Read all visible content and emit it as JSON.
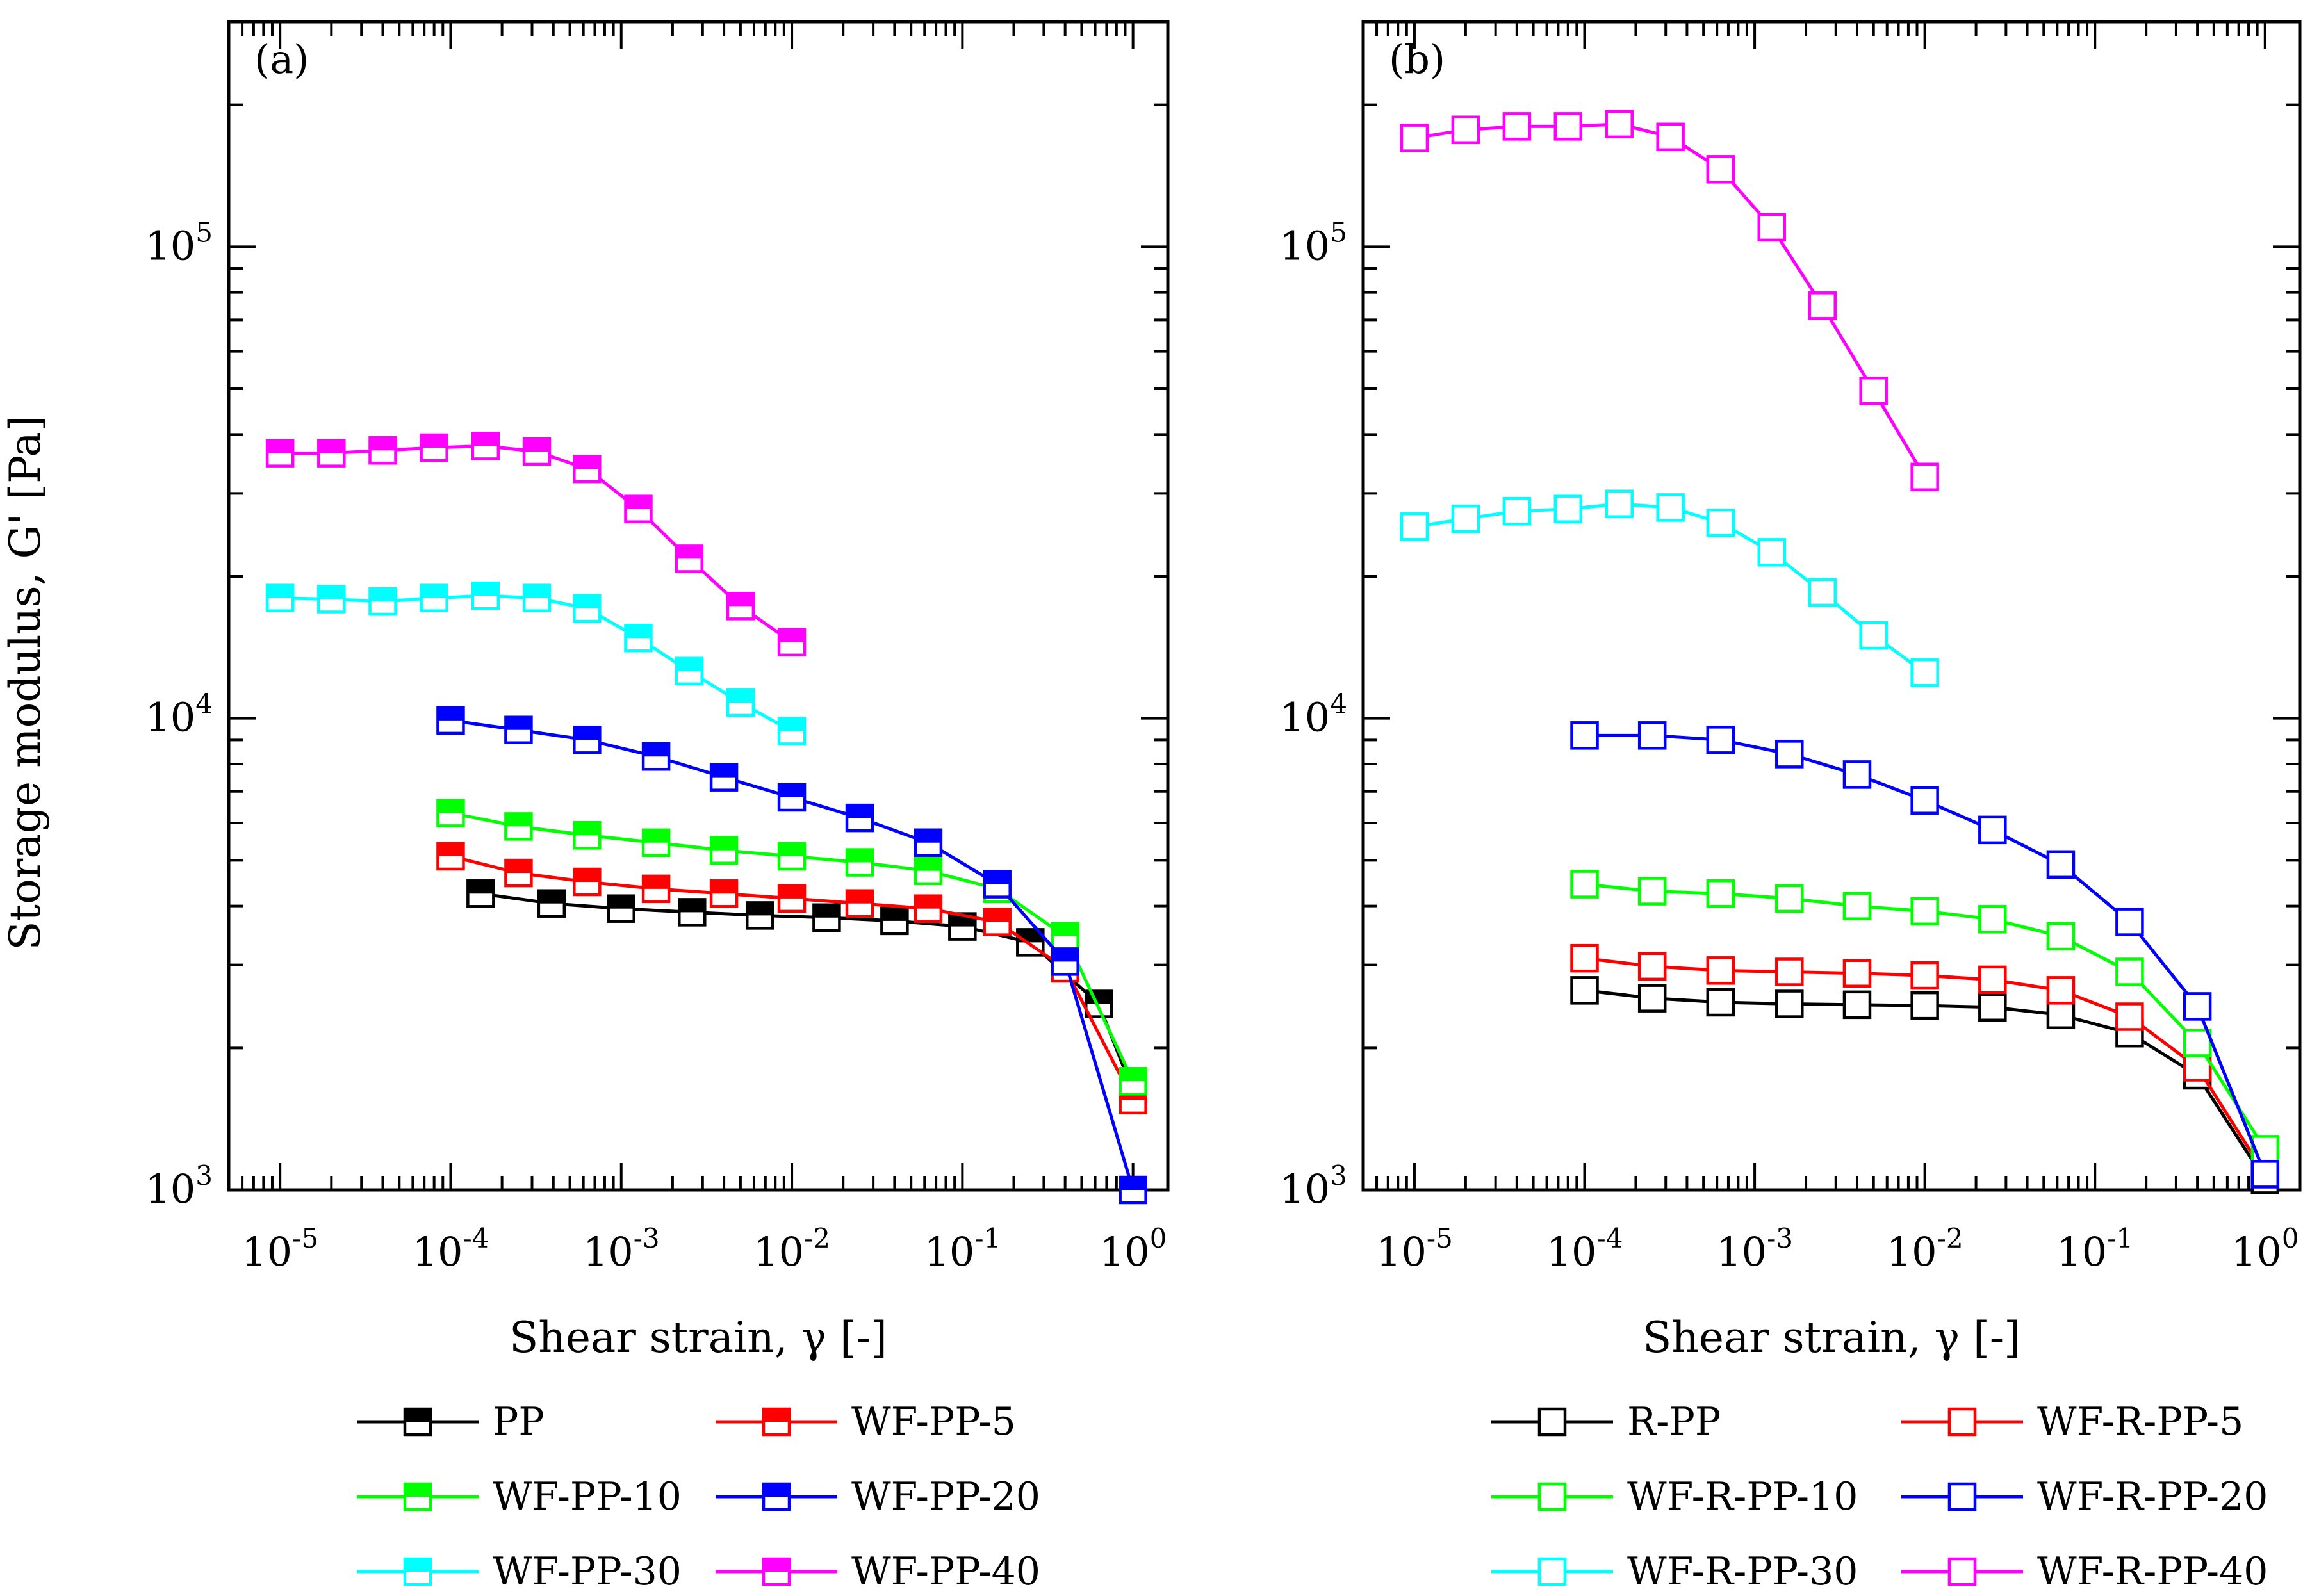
{
  "chart_data": [
    {
      "type": "line",
      "panel_label": "(a)",
      "xlabel": "Shear strain, γ [-]",
      "ylabel": "Storage modulus, G' [Pa]",
      "x_scale": "log",
      "y_scale": "log",
      "xlim": [
        5e-06,
        1.6
      ],
      "ylim": [
        1000,
        300000
      ],
      "x_ticks": [
        {
          "value": 1e-05,
          "base": "10",
          "exp": "-5"
        },
        {
          "value": 0.0001,
          "base": "10",
          "exp": "-4"
        },
        {
          "value": 0.001,
          "base": "10",
          "exp": "-3"
        },
        {
          "value": 0.01,
          "base": "10",
          "exp": "-2"
        },
        {
          "value": 0.1,
          "base": "10",
          "exp": "-1"
        },
        {
          "value": 1,
          "base": "10",
          "exp": "0"
        }
      ],
      "y_ticks": [
        {
          "value": 1000,
          "base": "10",
          "exp": "3"
        },
        {
          "value": 10000,
          "base": "10",
          "exp": "4"
        },
        {
          "value": 100000,
          "base": "10",
          "exp": "5"
        }
      ],
      "grid": false,
      "legend_position": "bottom",
      "marker": "half-filled-square",
      "series": [
        {
          "name": "PP",
          "color": "#000000",
          "x": [
            0.00015,
            0.00039,
            0.001,
            0.0026,
            0.0065,
            0.016,
            0.04,
            0.1,
            0.25,
            0.63,
            1.0
          ],
          "y": [
            4250,
            4050,
            3950,
            3880,
            3820,
            3780,
            3720,
            3620,
            3350,
            2480,
            1620
          ]
        },
        {
          "name": "WF-PP-5",
          "color": "#ff0000",
          "x": [
            0.0001,
            0.00025,
            0.00063,
            0.0016,
            0.004,
            0.01,
            0.025,
            0.063,
            0.16,
            0.4,
            1.0
          ],
          "y": [
            5100,
            4700,
            4500,
            4350,
            4250,
            4150,
            4050,
            3950,
            3700,
            2950,
            1550
          ]
        },
        {
          "name": "WF-PP-10",
          "color": "#00ff00",
          "x": [
            0.0001,
            0.00025,
            0.00063,
            0.0016,
            0.004,
            0.01,
            0.025,
            0.063,
            0.16,
            0.4,
            1.0
          ],
          "y": [
            6300,
            5900,
            5650,
            5450,
            5250,
            5100,
            4950,
            4750,
            4350,
            3450,
            1700
          ]
        },
        {
          "name": "WF-PP-20",
          "color": "#0000ff",
          "x": [
            0.0001,
            0.00025,
            0.00063,
            0.0016,
            0.004,
            0.01,
            0.025,
            0.063,
            0.16,
            0.4,
            1.0
          ],
          "y": [
            9900,
            9450,
            9000,
            8300,
            7500,
            6800,
            6150,
            5450,
            4450,
            3050,
            1000
          ]
        },
        {
          "name": "WF-PP-30",
          "color": "#00ffff",
          "x": [
            1e-05,
            2e-05,
            4e-05,
            8e-05,
            0.00016,
            0.00032,
            0.00063,
            0.00126,
            0.0025,
            0.005,
            0.01
          ],
          "y": [
            18000,
            17900,
            17700,
            18000,
            18200,
            18000,
            17100,
            14800,
            12600,
            10800,
            9400
          ]
        },
        {
          "name": "WF-PP-40",
          "color": "#ff00ff",
          "x": [
            1e-05,
            2e-05,
            4e-05,
            8e-05,
            0.00016,
            0.00032,
            0.00063,
            0.00126,
            0.0025,
            0.005,
            0.01
          ],
          "y": [
            36500,
            36500,
            37000,
            37500,
            37800,
            36800,
            33800,
            27800,
            21800,
            17300,
            14500
          ]
        }
      ]
    },
    {
      "type": "line",
      "panel_label": "(b)",
      "xlabel": "Shear strain, γ [-]",
      "ylabel": "",
      "x_scale": "log",
      "y_scale": "log",
      "xlim": [
        5e-06,
        1.6
      ],
      "ylim": [
        1000,
        300000
      ],
      "x_ticks": [
        {
          "value": 1e-05,
          "base": "10",
          "exp": "-5"
        },
        {
          "value": 0.0001,
          "base": "10",
          "exp": "-4"
        },
        {
          "value": 0.001,
          "base": "10",
          "exp": "-3"
        },
        {
          "value": 0.01,
          "base": "10",
          "exp": "-2"
        },
        {
          "value": 0.1,
          "base": "10",
          "exp": "-1"
        },
        {
          "value": 1,
          "base": "10",
          "exp": "0"
        }
      ],
      "y_ticks": [
        {
          "value": 1000,
          "base": "10",
          "exp": "3"
        },
        {
          "value": 10000,
          "base": "10",
          "exp": "4"
        },
        {
          "value": 100000,
          "base": "10",
          "exp": "5"
        }
      ],
      "grid": false,
      "legend_position": "bottom",
      "marker": "open-square",
      "series": [
        {
          "name": "R-PP",
          "color": "#000000",
          "x": [
            0.0001,
            0.00025,
            0.00063,
            0.0016,
            0.004,
            0.01,
            0.025,
            0.063,
            0.16,
            0.4,
            1.0
          ],
          "y": [
            2650,
            2550,
            2500,
            2480,
            2470,
            2460,
            2440,
            2350,
            2150,
            1750,
            1050
          ]
        },
        {
          "name": "WF-R-PP-5",
          "color": "#ff0000",
          "x": [
            0.0001,
            0.00025,
            0.00063,
            0.0016,
            0.004,
            0.01,
            0.025,
            0.063,
            0.16,
            0.4,
            1.0
          ],
          "y": [
            3100,
            2980,
            2920,
            2900,
            2880,
            2850,
            2790,
            2650,
            2330,
            1820,
            1080
          ]
        },
        {
          "name": "WF-R-PP-10",
          "color": "#00ff00",
          "x": [
            0.0001,
            0.00025,
            0.00063,
            0.0016,
            0.004,
            0.01,
            0.025,
            0.063,
            0.16,
            0.4,
            1.0
          ],
          "y": [
            4450,
            4300,
            4250,
            4150,
            4000,
            3900,
            3750,
            3450,
            2900,
            2050,
            1220
          ]
        },
        {
          "name": "WF-R-PP-20",
          "color": "#0000ff",
          "x": [
            0.0001,
            0.00025,
            0.00063,
            0.0016,
            0.004,
            0.01,
            0.025,
            0.063,
            0.16,
            0.4,
            1.0
          ],
          "y": [
            9200,
            9200,
            9000,
            8400,
            7600,
            6700,
            5800,
            4900,
            3700,
            2450,
            1080
          ]
        },
        {
          "name": "WF-R-PP-30",
          "color": "#00ffff",
          "x": [
            1e-05,
            2e-05,
            4e-05,
            8e-05,
            0.00016,
            0.00032,
            0.00063,
            0.00126,
            0.0025,
            0.005,
            0.01
          ],
          "y": [
            25500,
            26500,
            27500,
            27800,
            28500,
            28000,
            26000,
            22500,
            18500,
            15000,
            12500
          ]
        },
        {
          "name": "WF-R-PP-40",
          "color": "#ff00ff",
          "x": [
            1e-05,
            2e-05,
            4e-05,
            8e-05,
            0.00016,
            0.00032,
            0.00063,
            0.00126,
            0.0025,
            0.005,
            0.01
          ],
          "y": [
            170000,
            177000,
            180000,
            180000,
            182000,
            171000,
            146000,
            110000,
            75000,
            49500,
            32500
          ]
        }
      ]
    }
  ]
}
